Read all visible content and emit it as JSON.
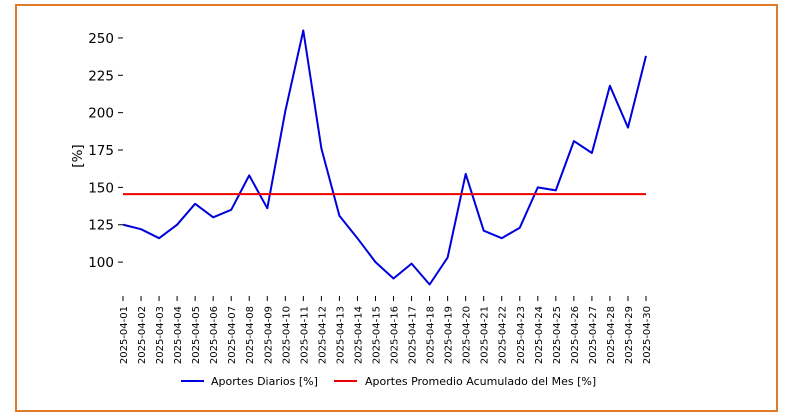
{
  "chart_data": {
    "type": "line",
    "title": "",
    "xlabel": "",
    "ylabel": "[%]",
    "ylim": [
      80,
      262
    ],
    "yticks": [
      100,
      125,
      150,
      175,
      200,
      225,
      250
    ],
    "grid": false,
    "legend_position": "bottom-center",
    "x": [
      "2025-04-01",
      "2025-04-02",
      "2025-04-03",
      "2025-04-04",
      "2025-04-05",
      "2025-04-06",
      "2025-04-07",
      "2025-04-08",
      "2025-04-09",
      "2025-04-10",
      "2025-04-11",
      "2025-04-12",
      "2025-04-13",
      "2025-04-14",
      "2025-04-15",
      "2025-04-16",
      "2025-04-17",
      "2025-04-18",
      "2025-04-19",
      "2025-04-20",
      "2025-04-21",
      "2025-04-22",
      "2025-04-23",
      "2025-04-24",
      "2025-04-25",
      "2025-04-26",
      "2025-04-27",
      "2025-04-28",
      "2025-04-29",
      "2025-04-30"
    ],
    "series": [
      {
        "name": "Aportes Diarios [%]",
        "color": "#0000dd",
        "values": [
          125,
          122,
          116,
          125,
          139,
          130,
          135,
          158,
          136,
          201,
          255,
          176,
          131,
          116,
          100,
          89,
          99,
          85,
          103,
          159,
          121,
          116,
          123,
          150,
          148,
          181,
          173,
          218,
          190,
          238
        ]
      },
      {
        "name": "Aportes Promedio Acumulado del Mes [%]",
        "color": "#ee0000",
        "values": [
          145.5,
          145.5,
          145.5,
          145.5,
          145.5,
          145.5,
          145.5,
          145.5,
          145.5,
          145.5,
          145.5,
          145.5,
          145.5,
          145.5,
          145.5,
          145.5,
          145.5,
          145.5,
          145.5,
          145.5,
          145.5,
          145.5,
          145.5,
          145.5,
          145.5,
          145.5,
          145.5,
          145.5,
          145.5,
          145.5
        ]
      }
    ]
  }
}
